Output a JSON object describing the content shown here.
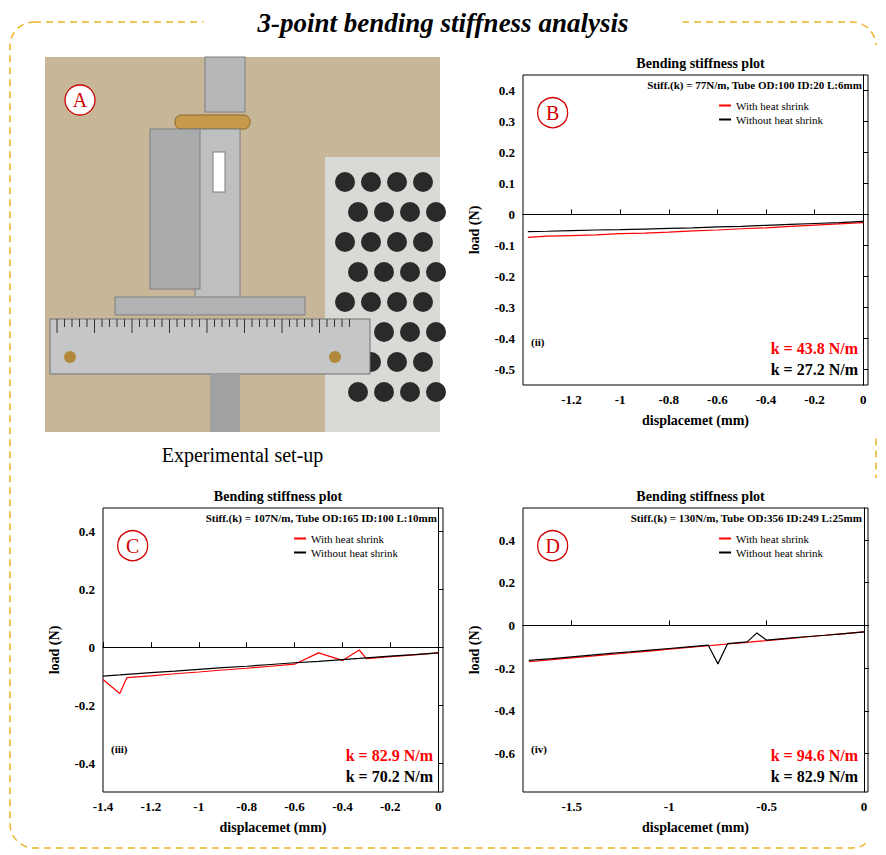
{
  "title": "3-point bending stiffness analysis",
  "photo_panel": {
    "letter": "A",
    "caption": "Experimental set-up"
  },
  "chart_data": [
    {
      "type": "line",
      "letter": "B",
      "title": "Bending stiffness plot",
      "subtitle": "Stiff.(k) = 77N/m, Tube OD:100 ID:20 L:6mm",
      "panel_label": "(ii)",
      "k_labels": [
        {
          "text": "k = 43.8 N/m",
          "color": "#ff0000"
        },
        {
          "text": "k = 27.2 N/m",
          "color": "#000000"
        }
      ],
      "xlabel": "displacemet (mm)",
      "ylabel": "load (N)",
      "xlim": [
        -1.4,
        0.02
      ],
      "ylim": [
        -0.55,
        0.45
      ],
      "xticks": [
        -1.2,
        -1,
        -0.8,
        -0.6,
        -0.4,
        -0.2,
        0
      ],
      "yticks": [
        -0.5,
        -0.4,
        -0.3,
        -0.2,
        -0.1,
        0,
        0.1,
        0.2,
        0.3,
        0.4
      ],
      "grid": false,
      "legend": "top right",
      "x": [
        -1.38,
        -1.3,
        -1.2,
        -1.1,
        -1.0,
        -0.9,
        -0.8,
        -0.7,
        -0.6,
        -0.5,
        -0.4,
        -0.3,
        -0.2,
        -0.1,
        0
      ],
      "series": [
        {
          "name": "With heat shrink",
          "color": "#ff0000",
          "values": [
            -0.074,
            -0.07,
            -0.068,
            -0.066,
            -0.062,
            -0.06,
            -0.057,
            -0.053,
            -0.05,
            -0.046,
            -0.043,
            -0.038,
            -0.034,
            -0.03,
            -0.026
          ]
        },
        {
          "name": "Without heat shrink",
          "color": "#000000",
          "values": [
            -0.055,
            -0.054,
            -0.052,
            -0.05,
            -0.049,
            -0.047,
            -0.045,
            -0.043,
            -0.04,
            -0.038,
            -0.035,
            -0.032,
            -0.029,
            -0.026,
            -0.022
          ]
        }
      ]
    },
    {
      "type": "line",
      "letter": "C",
      "title": "Bending stiffness plot",
      "subtitle": "Stiff.(k) = 107N/m, Tube OD:165 ID:100 L:10mm",
      "panel_label": "(iii)",
      "k_labels": [
        {
          "text": "k = 82.9 N/m",
          "color": "#ff0000"
        },
        {
          "text": "k = 70.2 N/m",
          "color": "#000000"
        }
      ],
      "xlabel": "displacemet (mm)",
      "ylabel": "load (N)",
      "xlim": [
        -1.4,
        0.02
      ],
      "ylim": [
        -0.5,
        0.48
      ],
      "xticks": [
        -1.4,
        -1.2,
        -1,
        -0.8,
        -0.6,
        -0.4,
        -0.2,
        0
      ],
      "yticks": [
        -0.4,
        -0.2,
        0,
        0.2,
        0.4
      ],
      "grid": false,
      "legend": "top right",
      "x": [
        -1.4,
        -1.33,
        -1.3,
        -1.2,
        -1.1,
        -1.0,
        -0.9,
        -0.8,
        -0.7,
        -0.6,
        -0.5,
        -0.4,
        -0.33,
        -0.3,
        -0.2,
        -0.1,
        0
      ],
      "series": [
        {
          "name": "With heat shrink",
          "color": "#ff0000",
          "values": [
            -0.112,
            -0.16,
            -0.105,
            -0.099,
            -0.092,
            -0.086,
            -0.079,
            -0.073,
            -0.066,
            -0.059,
            -0.02,
            -0.046,
            -0.01,
            -0.04,
            -0.033,
            -0.027,
            -0.02
          ]
        },
        {
          "name": "Without heat shrink",
          "color": "#000000",
          "values": [
            -0.1,
            -0.096,
            -0.094,
            -0.088,
            -0.083,
            -0.077,
            -0.071,
            -0.066,
            -0.06,
            -0.054,
            -0.049,
            -0.043,
            -0.039,
            -0.037,
            -0.031,
            -0.026,
            -0.02
          ]
        }
      ]
    },
    {
      "type": "line",
      "letter": "D",
      "title": "Bending stiffness plot",
      "subtitle": "Stiff.(k) = 130N/m, Tube OD:356 ID:249 L:25mm",
      "panel_label": "(iv)",
      "k_labels": [
        {
          "text": "k = 94.6 N/m",
          "color": "#ff0000"
        },
        {
          "text": "k = 82.9 N/m",
          "color": "#000000"
        }
      ],
      "xlabel": "displacemet (mm)",
      "ylabel": "load (N)",
      "xlim": [
        -1.75,
        0.02
      ],
      "ylim": [
        -0.78,
        0.55
      ],
      "xticks": [
        -1.5,
        -1,
        -0.5,
        0
      ],
      "yticks": [
        -0.6,
        -0.4,
        -0.2,
        0,
        0.2,
        0.4
      ],
      "grid": false,
      "legend": "top right",
      "x": [
        -1.72,
        -1.6,
        -1.5,
        -1.4,
        -1.3,
        -1.2,
        -1.1,
        -1.0,
        -0.9,
        -0.8,
        -0.75,
        -0.7,
        -0.6,
        -0.55,
        -0.5,
        -0.4,
        -0.3,
        -0.2,
        -0.1,
        0
      ],
      "series": [
        {
          "name": "With heat shrink",
          "color": "#ff0000",
          "values": [
            -0.17,
            -0.16,
            -0.152,
            -0.144,
            -0.136,
            -0.128,
            -0.12,
            -0.111,
            -0.103,
            -0.095,
            -0.091,
            -0.087,
            -0.079,
            -0.075,
            -0.071,
            -0.063,
            -0.054,
            -0.046,
            -0.038,
            -0.03
          ]
        },
        {
          "name": "Without heat shrink",
          "color": "#000000",
          "values": [
            -0.164,
            -0.155,
            -0.147,
            -0.139,
            -0.131,
            -0.124,
            -0.116,
            -0.108,
            -0.1,
            -0.092,
            -0.18,
            -0.085,
            -0.077,
            -0.035,
            -0.069,
            -0.061,
            -0.053,
            -0.046,
            -0.038,
            -0.03
          ]
        }
      ]
    }
  ]
}
